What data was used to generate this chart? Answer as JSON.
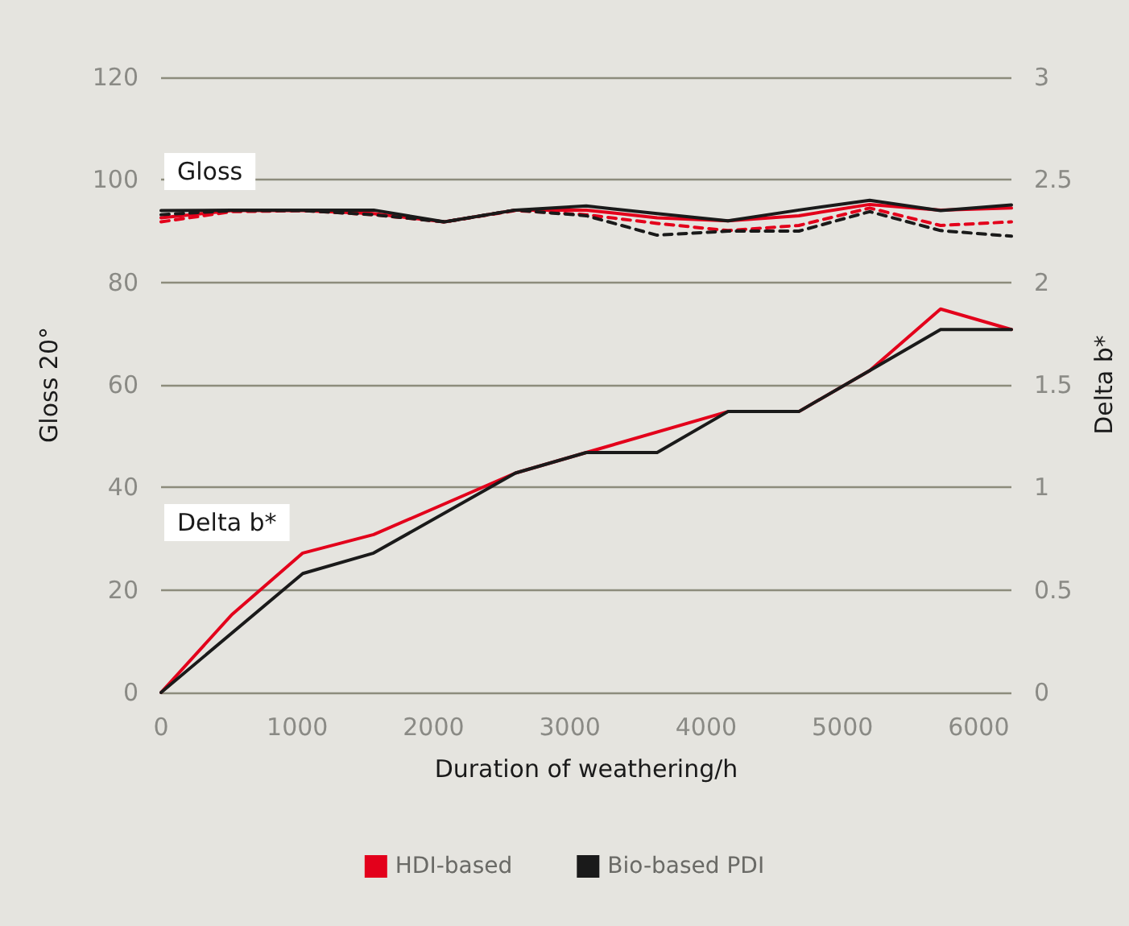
{
  "chart_data": {
    "type": "line",
    "xlabel": "Duration of weathering/h",
    "ylabel": "Gloss 20°",
    "y2label": "Delta b*",
    "annotations": [
      "Gloss",
      "Delta b*"
    ],
    "x": [
      0,
      520,
      1040,
      1560,
      2080,
      2600,
      3120,
      3640,
      4160,
      4680,
      5200,
      5720,
      6240
    ],
    "series": [
      {
        "name": "HDI-based",
        "color": "#e3001b",
        "values": [
          92.6,
          94,
          94,
          93.4,
          91.8,
          94.1,
          94.1,
          92.6,
          92,
          93,
          95.2,
          94.1,
          94.5
        ]
      },
      {
        "color": "#e3001b",
        "line_style": "dashed",
        "values": [
          91.8,
          93.8,
          94,
          93.2,
          91.8,
          94,
          93.2,
          91.5,
          90.1,
          91.1,
          94.5,
          91.1,
          91.8
        ]
      },
      {
        "name": "Bio-based PDI",
        "color": "#1a1a1a",
        "values": [
          94,
          94.1,
          94.1,
          94.1,
          91.8,
          94.1,
          94.9,
          93.4,
          92,
          94.1,
          96,
          94,
          95.1
        ]
      },
      {
        "color": "#1a1a1a",
        "line_style": "dashed",
        "values": [
          93.2,
          94,
          94,
          93.2,
          91.8,
          94.1,
          93,
          89.2,
          90,
          90,
          93.8,
          90.1,
          89
        ]
      },
      {
        "color": "#e3001b",
        "axis": "y2",
        "x": [
          0,
          520,
          1040,
          1560,
          2600,
          3120,
          4160,
          4680,
          5200,
          5720,
          6240
        ],
        "values": [
          0,
          0.38,
          0.68,
          0.77,
          1.07,
          1.17,
          1.37,
          1.37,
          1.57,
          1.87,
          1.77
        ]
      },
      {
        "color": "#1a1a1a",
        "axis": "y2",
        "x": [
          0,
          1040,
          1560,
          2600,
          3120,
          3640,
          4160,
          4680,
          5200,
          5720,
          6240
        ],
        "values": [
          0,
          0.58,
          0.68,
          1.07,
          1.17,
          1.17,
          1.37,
          1.37,
          1.57,
          1.77,
          1.77
        ]
      }
    ],
    "xlim": [
      0,
      6240
    ],
    "xticks": [
      0,
      1000,
      2000,
      3000,
      4000,
      5000,
      6000
    ],
    "ylim": [
      0,
      120
    ],
    "yticks": [
      0,
      20,
      40,
      60,
      80,
      100,
      120
    ],
    "y2lim": [
      0,
      3
    ],
    "y2ticks": [
      0,
      0.5,
      1,
      1.5,
      2,
      2.5,
      3
    ],
    "grid": "y",
    "legend": "bottom",
    "marker": "none",
    "line_style": "solid"
  }
}
